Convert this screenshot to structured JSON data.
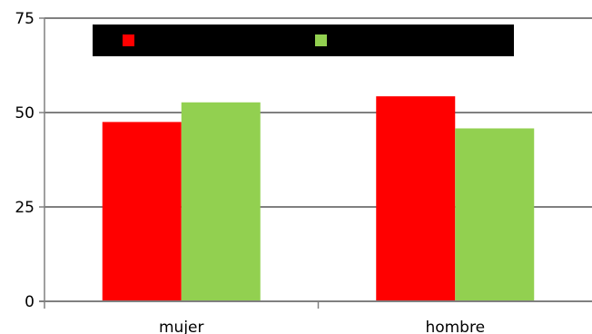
{
  "chart_data": {
    "type": "bar",
    "categories": [
      "mujer",
      "hombre"
    ],
    "series": [
      {
        "color": "#ff0000",
        "values": [
          47.5,
          54.3
        ]
      },
      {
        "color": "#92d050",
        "values": [
          52.7,
          45.8
        ]
      }
    ],
    "ylim": [
      0,
      75
    ],
    "yticks": [
      "0",
      "25",
      "50",
      "75"
    ],
    "grid": true,
    "legend_placement": "top",
    "legend_background": "#000000",
    "gridline_color": "#808080",
    "axis_color": "#808080"
  }
}
